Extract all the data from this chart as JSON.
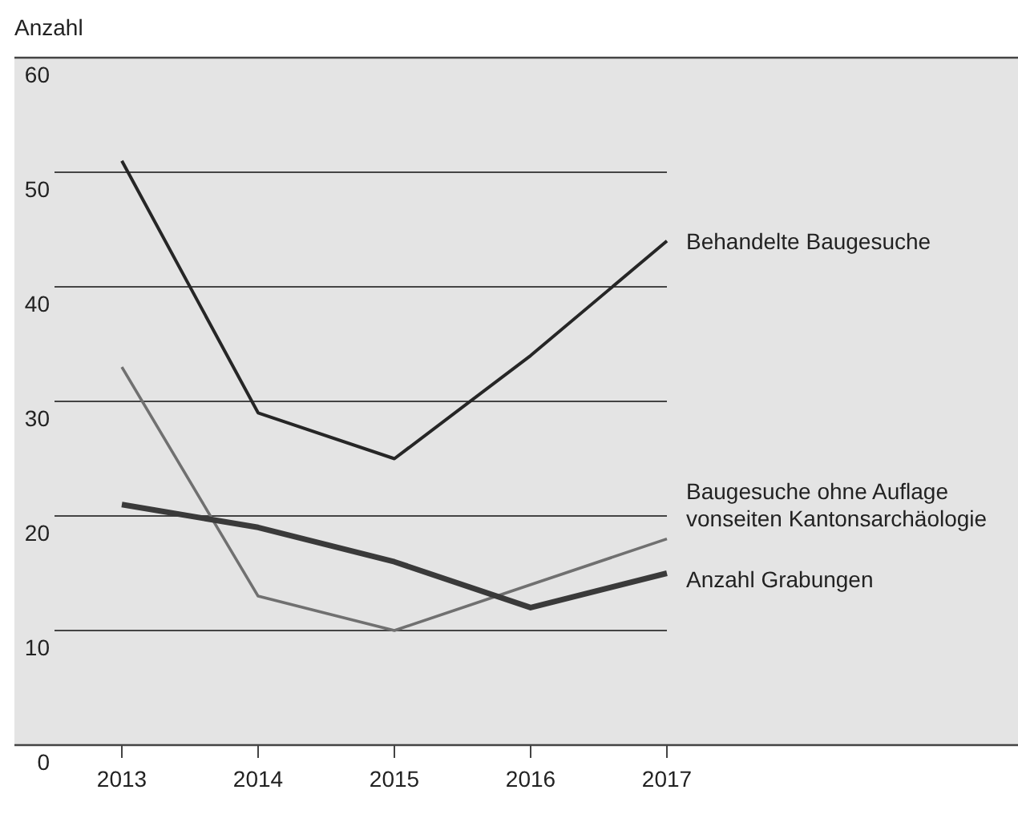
{
  "chart_data": {
    "type": "line",
    "ylabel": "Anzahl",
    "categories": [
      "2013",
      "2014",
      "2015",
      "2016",
      "2017"
    ],
    "ylim": [
      0,
      60
    ],
    "yticks": [
      0,
      10,
      20,
      30,
      40,
      50,
      60
    ],
    "grid": "y",
    "marker": "none",
    "line_style": "solid",
    "series": [
      {
        "name": "Behandelte Baugesuche",
        "color": "#262626",
        "values": [
          51,
          29,
          25,
          34,
          44
        ]
      },
      {
        "name": "Baugesuche ohne Auflage vonseiten Kantonsarchäologie",
        "color": "#707070",
        "values": [
          33,
          13,
          10,
          14,
          18
        ]
      },
      {
        "name": "Anzahl Grabungen",
        "color": "#3a3a3a",
        "values": [
          21,
          19,
          16,
          12,
          15
        ]
      }
    ]
  }
}
